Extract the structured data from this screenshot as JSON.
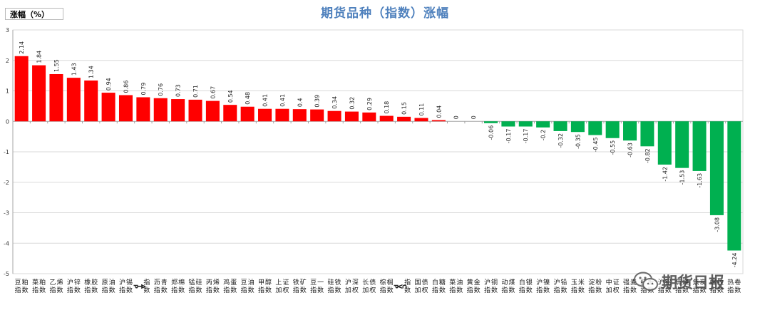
{
  "chart_data": {
    "type": "bar",
    "title": "期货品种（指数）涨幅",
    "ylabel": "涨幅（%）",
    "ylim": [
      -5,
      3
    ],
    "yticks": [
      3,
      2,
      1,
      0,
      -1,
      -2,
      -3,
      -4,
      -5
    ],
    "grid": true,
    "legend": "none",
    "colors": {
      "positive": "#ff0000",
      "negative": "#00b050",
      "axis": "#bfbfbf",
      "title": "#4f81bd"
    },
    "categories": [
      "豆粕指数",
      "菜粕指数",
      "乙烯指数",
      "沪锌指数",
      "橡胶指数",
      "原油指数",
      "沪锡指数",
      "PTA指数",
      "沥青指数",
      "郑棉指数",
      "锰硅指数",
      "丙烯指数",
      "鸡蛋指数",
      "豆油指数",
      "甲醇指数",
      "上证加权",
      "铁矿指数",
      "豆一指数",
      "硅铁指数",
      "沪深加权",
      "长债加权",
      "棕榈指数",
      "PVC指数",
      "国债加权",
      "白糖指数",
      "菜油指数",
      "黄金指数",
      "沪铜指数",
      "动煤指数",
      "白银指数",
      "沪镍指数",
      "沪铅指数",
      "玉米指数",
      "淀粉指数",
      "中证加权",
      "强麦指数",
      "纤板指数",
      "沪铝指数",
      "焦煤指数",
      "焦炭指数",
      "螺纹指数",
      "热卷指数"
    ],
    "values": [
      2.14,
      1.84,
      1.55,
      1.43,
      1.34,
      0.94,
      0.86,
      0.79,
      0.76,
      0.73,
      0.71,
      0.67,
      0.54,
      0.48,
      0.41,
      0.41,
      0.4,
      0.39,
      0.34,
      0.32,
      0.29,
      0.18,
      0.15,
      0.11,
      0.04,
      0,
      0,
      -0.06,
      -0.17,
      -0.17,
      -0.2,
      -0.32,
      -0.35,
      -0.45,
      -0.55,
      -0.63,
      -0.82,
      -1.42,
      -1.53,
      -1.63,
      -3.08,
      -4.24
    ],
    "value_labels": [
      "2.14",
      "1.84",
      "1.55",
      "1.43",
      "1.34",
      "0.94",
      "0.86",
      "0.79",
      "0.76",
      "0.73",
      "0.71",
      "0.67",
      "0.54",
      "0.48",
      "0.41",
      "0.41",
      "0.4",
      "0.39",
      "0.34",
      "0.32",
      "0.29",
      "0.18",
      "0.15",
      "0.11",
      "0.04",
      "0",
      "0",
      "-0.06",
      "-0.17",
      "-0.17",
      "-0.2",
      "-0.32",
      "-0.35",
      "-0.45",
      "-0.55",
      "-0.63",
      "-0.82",
      "-1.42",
      "-1.53",
      "-1.63",
      "-3.08",
      "-4.24"
    ]
  },
  "watermark": {
    "text": "期货日报",
    "icon": "wechat-icon"
  }
}
